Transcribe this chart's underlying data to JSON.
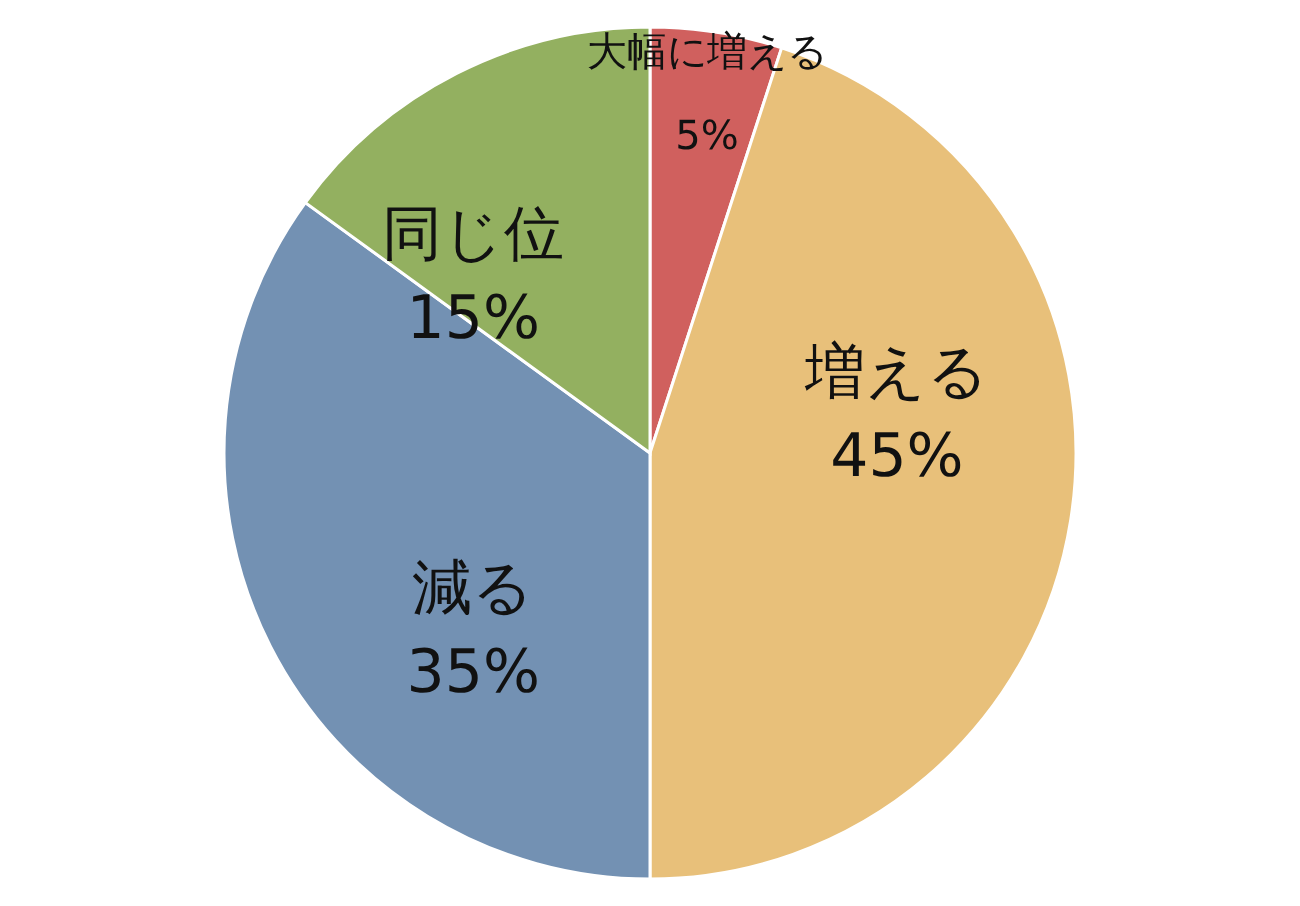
{
  "chart_data": {
    "type": "pie",
    "categories": [
      "大幅に増える",
      "増える",
      "減る",
      "同じ位"
    ],
    "values": [
      5,
      45,
      35,
      15
    ],
    "colors": [
      "#d0605e",
      "#e8c07a",
      "#7391b3",
      "#93b060"
    ],
    "value_labels": [
      "5%",
      "45%",
      "35%",
      "15%"
    ]
  }
}
